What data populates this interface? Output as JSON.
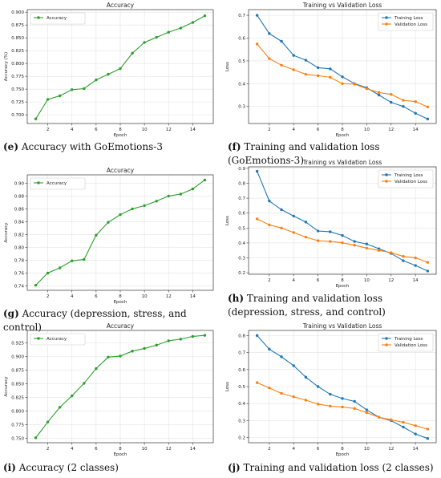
{
  "captions": {
    "e": {
      "letter": "(e)",
      "text": " Accuracy with GoEmotions-3"
    },
    "f": {
      "letter": "(f)",
      "text": " Training and validation loss (GoEmotions-3)"
    },
    "g": {
      "letter": "(g)",
      "text": " Accuracy (depression, stress, and control)"
    },
    "h": {
      "letter": "(h)",
      "text": " Training and validation loss (depression, stress, and control)"
    },
    "i": {
      "letter": "(i)",
      "text": " Accuracy (2 classes)"
    },
    "j": {
      "letter": "(j)",
      "text": " Training and validation loss (2 classes)"
    }
  },
  "chart_data": [
    {
      "id": "e",
      "type": "line",
      "title": "Accuracy",
      "xlabel": "Epoch",
      "ylabel": "Accuracy (%)",
      "xlim": [
        0.3,
        15.7
      ],
      "ylim": [
        0.683,
        0.905
      ],
      "xticks": [
        2,
        4,
        6,
        8,
        10,
        12,
        14
      ],
      "yticks": [
        0.7,
        0.725,
        0.75,
        0.775,
        0.8,
        0.825,
        0.85,
        0.875,
        0.9
      ],
      "ytick_labels": [
        "0.700",
        "0.725",
        "0.750",
        "0.775",
        "0.800",
        "0.825",
        "0.850",
        "0.875",
        "0.900"
      ],
      "x": [
        1,
        2,
        3,
        4,
        5,
        6,
        7,
        8,
        9,
        10,
        11,
        12,
        13,
        14,
        15
      ],
      "grid": true,
      "legend": "upper-left",
      "series": [
        {
          "name": "Accuracy",
          "color": "#2ca02c",
          "values": [
            0.692,
            0.73,
            0.737,
            0.749,
            0.751,
            0.768,
            0.779,
            0.79,
            0.82,
            0.841,
            0.851,
            0.861,
            0.869,
            0.88,
            0.893
          ]
        }
      ]
    },
    {
      "id": "f",
      "type": "line",
      "title": "Training vs Validation Loss",
      "xlabel": "Epoch",
      "ylabel": "Loss",
      "xlim": [
        0.3,
        15.7
      ],
      "ylim": [
        0.225,
        0.725
      ],
      "xticks": [
        2,
        4,
        6,
        8,
        10,
        12,
        14
      ],
      "yticks": [
        0.3,
        0.4,
        0.5,
        0.6,
        0.7
      ],
      "ytick_labels": [
        "0.3",
        "0.4",
        "0.5",
        "0.6",
        "0.7"
      ],
      "x": [
        1,
        2,
        3,
        4,
        5,
        6,
        7,
        8,
        9,
        10,
        11,
        12,
        13,
        14,
        15
      ],
      "grid": true,
      "legend": "upper-right",
      "series": [
        {
          "name": "Training Loss",
          "color": "#1f77b4",
          "values": [
            0.7,
            0.62,
            0.586,
            0.524,
            0.503,
            0.47,
            0.465,
            0.43,
            0.4,
            0.382,
            0.35,
            0.318,
            0.3,
            0.27,
            0.245
          ]
        },
        {
          "name": "Validation Loss",
          "color": "#ff7f0e",
          "values": [
            0.574,
            0.51,
            0.481,
            0.461,
            0.441,
            0.435,
            0.428,
            0.4,
            0.398,
            0.378,
            0.361,
            0.353,
            0.327,
            0.321,
            0.298
          ]
        }
      ]
    },
    {
      "id": "g",
      "type": "line",
      "title": "Accuracy",
      "xlabel": "Epoch",
      "ylabel": "Accuracy",
      "xlim": [
        0.3,
        15.7
      ],
      "ylim": [
        0.733,
        0.913
      ],
      "xticks": [
        2,
        4,
        6,
        8,
        10,
        12,
        14
      ],
      "yticks": [
        0.74,
        0.76,
        0.78,
        0.8,
        0.82,
        0.84,
        0.86,
        0.88,
        0.9
      ],
      "ytick_labels": [
        "0.74",
        "0.76",
        "0.78",
        "0.80",
        "0.82",
        "0.84",
        "0.86",
        "0.88",
        "0.90"
      ],
      "x": [
        1,
        2,
        3,
        4,
        5,
        6,
        7,
        8,
        9,
        10,
        11,
        12,
        13,
        14,
        15
      ],
      "grid": true,
      "legend": "upper-left",
      "series": [
        {
          "name": "Accuracy",
          "color": "#2ca02c",
          "values": [
            0.741,
            0.76,
            0.768,
            0.779,
            0.781,
            0.819,
            0.839,
            0.851,
            0.86,
            0.865,
            0.872,
            0.88,
            0.883,
            0.891,
            0.905
          ]
        }
      ]
    },
    {
      "id": "h",
      "type": "line",
      "title": "Training vs Validation Loss",
      "xlabel": "Epoch",
      "ylabel": "Loss",
      "xlim": [
        0.3,
        15.7
      ],
      "ylim": [
        0.19,
        0.91
      ],
      "xticks": [
        2,
        4,
        6,
        8,
        10,
        12,
        14
      ],
      "yticks": [
        0.2,
        0.3,
        0.4,
        0.5,
        0.6,
        0.7,
        0.8,
        0.9
      ],
      "ytick_labels": [
        "0.2",
        "0.3",
        "0.4",
        "0.5",
        "0.6",
        "0.7",
        "0.8",
        "0.9"
      ],
      "x": [
        1,
        2,
        3,
        4,
        5,
        6,
        7,
        8,
        9,
        10,
        11,
        12,
        13,
        14,
        15
      ],
      "grid": true,
      "legend": "upper-right",
      "series": [
        {
          "name": "Training Loss",
          "color": "#1f77b4",
          "values": [
            0.88,
            0.681,
            0.623,
            0.58,
            0.54,
            0.48,
            0.475,
            0.45,
            0.41,
            0.393,
            0.361,
            0.33,
            0.281,
            0.249,
            0.212
          ]
        },
        {
          "name": "Validation Loss",
          "color": "#ff7f0e",
          "values": [
            0.561,
            0.521,
            0.5,
            0.47,
            0.439,
            0.415,
            0.41,
            0.401,
            0.385,
            0.365,
            0.35,
            0.335,
            0.31,
            0.3,
            0.27
          ]
        }
      ]
    },
    {
      "id": "i",
      "type": "line",
      "title": "Accuracy",
      "xlabel": "Epoch",
      "ylabel": "Accuracy",
      "xlim": [
        0.3,
        15.7
      ],
      "ylim": [
        0.742,
        0.948
      ],
      "xticks": [
        2,
        4,
        6,
        8,
        10,
        12,
        14
      ],
      "yticks": [
        0.75,
        0.775,
        0.8,
        0.825,
        0.85,
        0.875,
        0.9,
        0.925
      ],
      "ytick_labels": [
        "0.750",
        "0.775",
        "0.800",
        "0.825",
        "0.850",
        "0.875",
        "0.900",
        "0.925"
      ],
      "x": [
        1,
        2,
        3,
        4,
        5,
        6,
        7,
        8,
        9,
        10,
        11,
        12,
        13,
        14,
        15
      ],
      "grid": true,
      "legend": "upper-left",
      "series": [
        {
          "name": "Accuracy",
          "color": "#2ca02c",
          "values": [
            0.751,
            0.78,
            0.807,
            0.828,
            0.851,
            0.878,
            0.899,
            0.901,
            0.91,
            0.915,
            0.921,
            0.929,
            0.932,
            0.937,
            0.939
          ]
        }
      ]
    },
    {
      "id": "j",
      "type": "line",
      "title": "Training vs Validation Loss",
      "xlabel": "Epoch",
      "ylabel": "Loss",
      "xlim": [
        0.3,
        15.7
      ],
      "ylim": [
        0.17,
        0.83
      ],
      "xticks": [
        2,
        4,
        6,
        8,
        10,
        12,
        14
      ],
      "yticks": [
        0.2,
        0.3,
        0.4,
        0.5,
        0.6,
        0.7,
        0.8
      ],
      "ytick_labels": [
        "0.2",
        "0.3",
        "0.4",
        "0.5",
        "0.6",
        "0.7",
        "0.8"
      ],
      "x": [
        1,
        2,
        3,
        4,
        5,
        6,
        7,
        8,
        9,
        10,
        11,
        12,
        13,
        14,
        15
      ],
      "grid": true,
      "legend": "upper-right",
      "series": [
        {
          "name": "Training Loss",
          "color": "#1f77b4",
          "values": [
            0.8,
            0.72,
            0.675,
            0.623,
            0.555,
            0.5,
            0.455,
            0.43,
            0.413,
            0.363,
            0.32,
            0.3,
            0.262,
            0.221,
            0.195
          ]
        },
        {
          "name": "Validation Loss",
          "color": "#ff7f0e",
          "values": [
            0.523,
            0.492,
            0.46,
            0.44,
            0.42,
            0.397,
            0.385,
            0.38,
            0.371,
            0.347,
            0.32,
            0.305,
            0.29,
            0.27,
            0.25
          ]
        }
      ]
    }
  ]
}
